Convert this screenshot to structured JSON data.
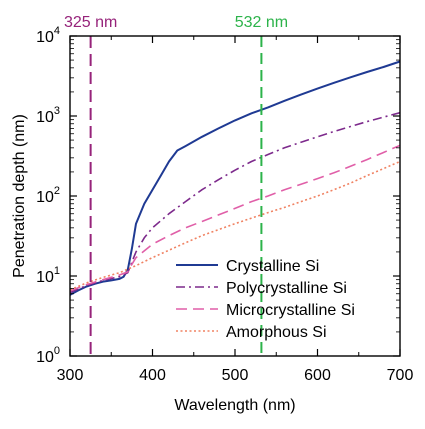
{
  "chart_data": {
    "type": "line",
    "title": "",
    "xlabel": "Wavelength (nm)",
    "ylabel": "Penetration depth (nm)",
    "xlim": [
      300,
      700
    ],
    "ylim": [
      1,
      10000
    ],
    "yscale": "log",
    "x_ticks": [
      300,
      400,
      500,
      600,
      700
    ],
    "x_tick_labels": [
      "300",
      "400",
      "500",
      "600",
      "700"
    ],
    "y_ticks": [
      1,
      10,
      100,
      1000,
      10000
    ],
    "y_tick_labels": [
      {
        "base": "10",
        "exp": "0"
      },
      {
        "base": "10",
        "exp": "1"
      },
      {
        "base": "10",
        "exp": "2"
      },
      {
        "base": "10",
        "exp": "3"
      },
      {
        "base": "10",
        "exp": "4"
      }
    ],
    "grid": false,
    "legend_position": "lower-right",
    "vlines": [
      {
        "x": 325,
        "label": "325 nm",
        "color": "#96237a",
        "dash": "long-dash"
      },
      {
        "x": 532,
        "label": "532 nm",
        "color": "#2cb34a",
        "dash": "dash"
      }
    ],
    "series": [
      {
        "name": "Crystalline Si",
        "color": "#1f3a93",
        "style": "solid",
        "x": [
          300,
          310,
          320,
          330,
          340,
          350,
          360,
          365,
          370,
          375,
          380,
          390,
          400,
          410,
          420,
          430,
          440,
          460,
          480,
          500,
          520,
          540,
          560,
          580,
          600,
          620,
          640,
          660,
          680,
          700
        ],
        "y": [
          5.8,
          6.6,
          7.4,
          8.0,
          8.5,
          8.8,
          9.2,
          9.8,
          12,
          22,
          45,
          80,
          120,
          180,
          270,
          370,
          420,
          550,
          700,
          880,
          1080,
          1280,
          1550,
          1850,
          2200,
          2600,
          3050,
          3550,
          4100,
          4800
        ]
      },
      {
        "name": "Polycrystalline Si",
        "color": "#7d2a8c",
        "style": "dash-dot",
        "x": [
          300,
          320,
          340,
          360,
          370,
          375,
          380,
          390,
          400,
          420,
          440,
          460,
          480,
          500,
          520,
          540,
          560,
          580,
          600,
          620,
          640,
          660,
          680,
          700
        ],
        "y": [
          6.2,
          7.6,
          8.8,
          9.8,
          11,
          15,
          20,
          30,
          40,
          60,
          85,
          120,
          160,
          210,
          270,
          330,
          400,
          470,
          550,
          640,
          740,
          850,
          970,
          1100
        ]
      },
      {
        "name": "Microcrystalline Si",
        "color": "#e05fa8",
        "style": "dash",
        "x": [
          300,
          320,
          340,
          360,
          370,
          375,
          380,
          400,
          420,
          440,
          460,
          480,
          500,
          520,
          540,
          560,
          580,
          600,
          620,
          640,
          660,
          680,
          700
        ],
        "y": [
          6.5,
          7.8,
          9.0,
          10.3,
          11.3,
          14,
          17,
          25,
          32,
          40,
          48,
          58,
          70,
          85,
          100,
          120,
          140,
          165,
          195,
          235,
          285,
          350,
          430
        ]
      },
      {
        "name": "Amorphous Si",
        "color": "#f08262",
        "style": "dot",
        "x": [
          300,
          320,
          340,
          360,
          380,
          400,
          420,
          440,
          460,
          480,
          500,
          520,
          540,
          560,
          580,
          600,
          620,
          640,
          660,
          680,
          700
        ],
        "y": [
          6.7,
          8.2,
          9.6,
          11.0,
          13.5,
          17,
          21,
          26,
          32,
          38,
          45,
          53,
          62,
          72,
          85,
          100,
          120,
          145,
          180,
          220,
          270
        ]
      }
    ]
  }
}
